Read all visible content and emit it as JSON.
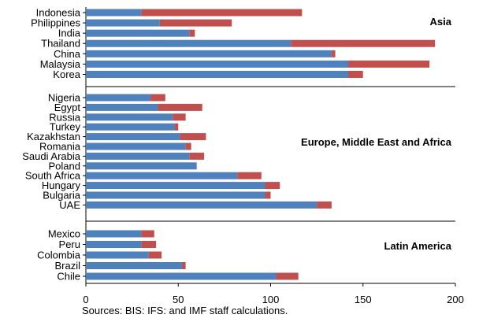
{
  "chart_data": {
    "type": "bar",
    "orientation": "horizontal",
    "stacked": true,
    "xlim": [
      0,
      200
    ],
    "x_ticks": [
      0,
      50,
      100,
      150,
      200
    ],
    "grid": false,
    "legend": "none",
    "colors": {
      "segment1": "#4F81BD",
      "segment2": "#C0504D",
      "separator": "#000000"
    },
    "groups": [
      {
        "label": "Asia",
        "categories": [
          "Indonesia",
          "Philippines",
          "India",
          "Thailand",
          "China",
          "Malaysia",
          "Korea"
        ],
        "segment1": [
          30,
          40,
          56,
          111,
          133,
          142,
          142
        ],
        "segment2": [
          87,
          39,
          3,
          78,
          2,
          44,
          8
        ]
      },
      {
        "label": "Europe, Middle East and Africa",
        "categories": [
          "Nigeria",
          "Egypt",
          "Russia",
          "Turkey",
          "Kazakhstan",
          "Romania",
          "Saudi Arabia",
          "Poland",
          "South Africa",
          "Hungary",
          "Bulgaria",
          "UAE"
        ],
        "segment1": [
          35,
          39,
          47,
          48,
          51,
          54,
          56,
          60,
          82,
          97,
          97,
          125
        ],
        "segment2": [
          8,
          24,
          7,
          2,
          14,
          3,
          8,
          0,
          13,
          8,
          3,
          8
        ]
      },
      {
        "label": "Latin America",
        "categories": [
          "Mexico",
          "Peru",
          "Colombia",
          "Brazil",
          "Chile"
        ],
        "segment1": [
          30,
          30,
          34,
          52,
          103
        ],
        "segment2": [
          7,
          8,
          7,
          2,
          12
        ]
      }
    ]
  },
  "source_note": "Sources: BIS: IFS: and IMF staff calculations."
}
